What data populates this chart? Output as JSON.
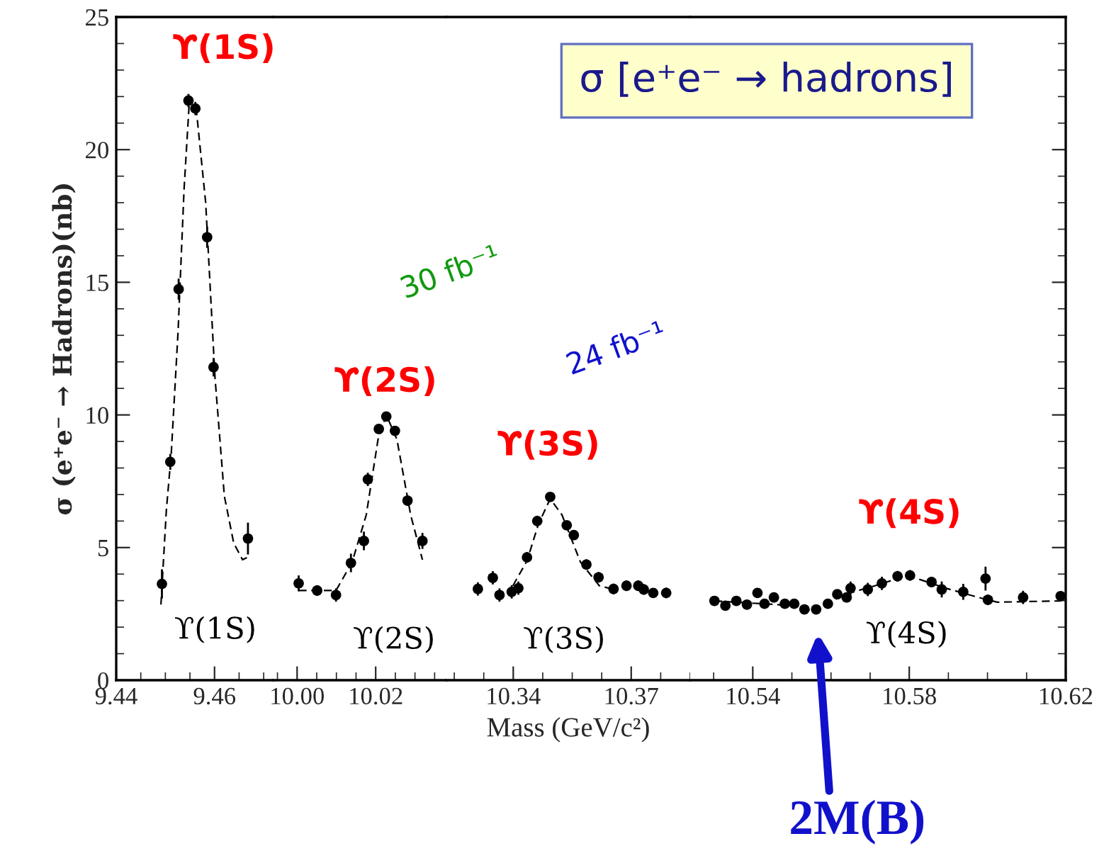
{
  "chart_data": [
    {
      "type": "scatter",
      "ylabel": "σ (e⁺e⁻ → Hadrons)(nb)",
      "xlim": [
        9.44,
        9.472
      ],
      "xticks": [
        9.44,
        9.46
      ],
      "ylim": [
        0,
        25
      ],
      "yticks": [
        0,
        5,
        10,
        15,
        20,
        25
      ],
      "series": [
        {
          "marker": "circle",
          "color": "#000000",
          "x": [
            9.4493,
            9.451,
            9.4527,
            9.4547,
            9.4561,
            9.4585,
            9.4598,
            9.4668
          ],
          "values": [
            3.63,
            8.23,
            14.74,
            21.85,
            21.55,
            16.7,
            11.8,
            5.34
          ],
          "errors": [
            0.55,
            0.3,
            0.4,
            0.25,
            0.25,
            0.4,
            0.35,
            0.6
          ]
        },
        {
          "type": "line",
          "marker": "none",
          "color": "#000000",
          "line_style": "dashed",
          "x": [
            9.4491,
            9.4502,
            9.4512,
            9.4526,
            9.4538,
            9.4549,
            9.4563,
            9.4582,
            9.4601,
            9.462,
            9.4639,
            9.4657,
            9.4667
          ],
          "values": [
            2.85,
            6.41,
            8.55,
            13.2,
            18.5,
            21.9,
            21.5,
            18.0,
            11.4,
            6.94,
            5.17,
            4.54,
            4.63
          ]
        }
      ],
      "annotations": [
        "ϒ(1S)",
        "ϒ(1S)"
      ]
    },
    {
      "type": "scatter",
      "tick_labels": "x",
      "xlim": [
        9.994,
        10.038
      ],
      "xticks": [
        {
          "value": 10.0,
          "label": "10.00"
        },
        10.02
      ],
      "ylim": [
        0,
        25
      ],
      "yticks": [
        0,
        5,
        10,
        15,
        20,
        25
      ],
      "series": [
        {
          "marker": "circle",
          "color": "#000000",
          "x": [
            10.0004,
            10.0051,
            10.0099,
            10.0137,
            10.017,
            10.018,
            10.0208,
            10.0227,
            10.0249,
            10.0281,
            10.0319
          ],
          "values": [
            3.65,
            3.38,
            3.21,
            4.42,
            5.25,
            7.57,
            9.47,
            9.94,
            9.4,
            6.77,
            5.25
          ],
          "errors": [
            0.3,
            0.2,
            0.25,
            0.35,
            0.35,
            0.25,
            0.15,
            0.15,
            0.15,
            0.2,
            0.3
          ]
        },
        {
          "type": "line",
          "marker": "none",
          "color": "#000000",
          "line_style": "dashed",
          "x": [
            10.0004,
            10.0099,
            10.014,
            10.0176,
            10.0206,
            10.0227,
            10.0254,
            10.0289,
            10.0319
          ],
          "values": [
            3.38,
            3.38,
            4.45,
            6.23,
            9.08,
            10.0,
            9.08,
            6.23,
            4.54
          ]
        }
      ],
      "annotations": [
        "ϒ(2S)",
        "ϒ(2S)"
      ]
    },
    {
      "type": "scatter",
      "tick_labels": "x",
      "xlabel": "Mass (GeV/c²)",
      "xlim": [
        10.323,
        10.385
      ],
      "xticks": [
        10.34,
        10.37
      ],
      "ylim": [
        0,
        25
      ],
      "yticks": [
        0,
        5,
        10,
        15,
        20,
        25
      ],
      "series": [
        {
          "marker": "circle",
          "color": "#000000",
          "x": [
            10.331,
            10.3348,
            10.3365,
            10.3396,
            10.3413,
            10.3435,
            10.3461,
            10.3494,
            10.3536,
            10.3554,
            10.3586,
            10.3617,
            10.3655,
            10.3688,
            10.3718,
            10.3732,
            10.3756,
            10.3789
          ],
          "values": [
            3.44,
            3.86,
            3.21,
            3.33,
            3.47,
            4.63,
            6.0,
            6.91,
            5.84,
            5.47,
            4.36,
            3.88,
            3.44,
            3.56,
            3.56,
            3.42,
            3.29,
            3.29
          ],
          "errors": [
            0.25,
            0.25,
            0.25,
            0.25,
            0.25,
            0.2,
            0.2,
            0.15,
            0.15,
            0.15,
            0.2,
            0.2,
            0.2,
            0.2,
            0.2,
            0.2,
            0.15,
            0.2
          ]
        },
        {
          "type": "line",
          "marker": "none",
          "color": "#000000",
          "line_style": "dashed",
          "x": [
            10.3399,
            10.3435,
            10.3464,
            10.3494,
            10.3524,
            10.3571,
            10.3619,
            10.3667
          ],
          "values": [
            3.56,
            4.5,
            5.88,
            6.84,
            6.23,
            4.45,
            3.56,
            3.38
          ]
        }
      ],
      "annotations": [
        "30 fb⁻¹",
        "ϒ(3S)",
        "24 fb⁻¹",
        "ϒ(3S)"
      ]
    },
    {
      "type": "scatter",
      "tick_labels": "x",
      "xlim": [
        10.524,
        10.62
      ],
      "xticks": [
        10.54,
        10.58,
        10.62
      ],
      "ylim": [
        0,
        25
      ],
      "yticks": [
        0,
        5,
        10,
        15,
        20,
        25
      ],
      "series": [
        {
          "marker": "circle",
          "color": "#000000",
          "x": [
            10.5302,
            10.533,
            10.5358,
            10.5385,
            10.5412,
            10.543,
            10.5454,
            10.5482,
            10.5506,
            10.5532,
            10.5562,
            10.5592,
            10.5616,
            10.564,
            10.565,
            10.5694,
            10.573,
            10.577,
            10.5802,
            10.5857,
            10.5883,
            10.5938,
            10.5995,
            10.6001,
            10.6091,
            10.6187
          ],
          "values": [
            2.99,
            2.81,
            2.99,
            2.85,
            3.29,
            2.88,
            3.12,
            2.88,
            2.88,
            2.67,
            2.67,
            2.88,
            3.24,
            3.12,
            3.47,
            3.42,
            3.65,
            3.92,
            3.95,
            3.7,
            3.42,
            3.33,
            3.83,
            3.03,
            3.12,
            3.17
          ],
          "errors": [
            0.15,
            0.15,
            0.15,
            0.15,
            0.15,
            0.15,
            0.15,
            0.15,
            0.15,
            0.15,
            0.15,
            0.15,
            0.15,
            0.15,
            0.25,
            0.25,
            0.25,
            0.2,
            0.2,
            0.2,
            0.3,
            0.3,
            0.45,
            0.2,
            0.25,
            0.15
          ]
        },
        {
          "type": "line",
          "marker": "none",
          "color": "#000000",
          "line_style": "dashed",
          "x": [
            10.5302,
            10.5506,
            10.5562,
            10.5628,
            10.5712,
            10.5796,
            10.5893,
            10.5977,
            10.6025,
            10.6187
          ],
          "values": [
            2.99,
            2.81,
            2.58,
            3.2,
            3.56,
            3.95,
            3.47,
            3.12,
            2.94,
            2.99
          ]
        }
      ],
      "annotations": [
        "ϒ(4S)",
        "ϒ(4S)",
        "2M(B)",
        "σ [e⁺e⁻ → hadrons]"
      ]
    }
  ]
}
